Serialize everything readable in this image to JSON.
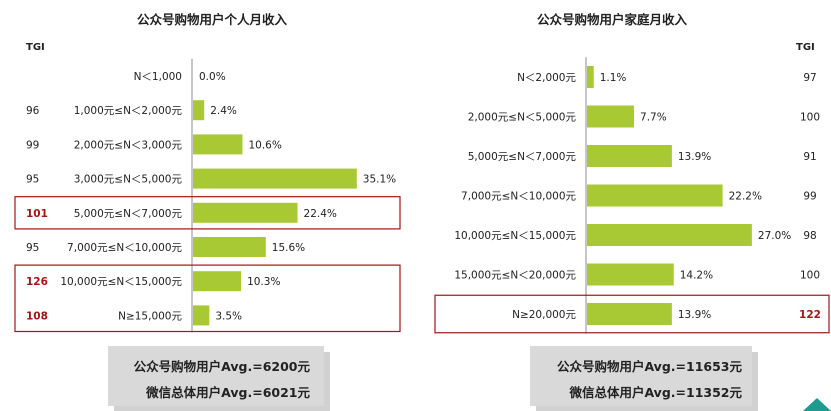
{
  "chart_data": [
    {
      "type": "bar",
      "orientation": "horizontal",
      "title": "公众号购物用户个人月收入",
      "tgi_header": "TGI",
      "categories": [
        "N＜1,000",
        "1,000元≤N＜2,000元",
        "2,000元≤N＜3,000元",
        "3,000元≤N＜5,000元",
        "5,000元≤N＜7,000元",
        "7,000元≤N＜10,000元",
        "10,000元≤N＜15,000元",
        "N≥15,000元"
      ],
      "values": [
        0.0,
        2.4,
        10.6,
        35.1,
        22.4,
        15.6,
        10.3,
        3.5
      ],
      "value_labels": [
        "0.0%",
        "2.4%",
        "10.6%",
        "35.1%",
        "22.4%",
        "15.6%",
        "10.3%",
        "3.5%"
      ],
      "tgi": [
        "",
        "96",
        "99",
        "95",
        "101",
        "95",
        "126",
        "108"
      ],
      "highlighted": [
        4,
        6,
        7
      ],
      "bar_color": "#a9c934",
      "highlight_color": "#a31515",
      "xlim": [
        0,
        36
      ],
      "averages": [
        "公众号购物用户Avg.=6200元",
        "微信总体用户Avg.=6021元"
      ]
    },
    {
      "type": "bar",
      "orientation": "horizontal",
      "title": "公众号购物用户家庭月收入",
      "tgi_header": "TGI",
      "categories": [
        "N＜2,000元",
        "2,000元≤N＜5,000元",
        "5,000元≤N＜7,000元",
        "7,000元≤N＜10,000元",
        "10,000元≤N＜15,000元",
        "15,000元≤N＜20,000元",
        "N≥20,000元"
      ],
      "values": [
        1.1,
        7.7,
        13.9,
        22.2,
        27.0,
        14.2,
        13.9
      ],
      "value_labels": [
        "1.1%",
        "7.7%",
        "13.9%",
        "22.2%",
        "27.0%",
        "14.2%",
        "13.9%"
      ],
      "tgi": [
        "97",
        "100",
        "91",
        "99",
        "98",
        "100",
        "122"
      ],
      "highlighted": [
        6
      ],
      "bar_color": "#a9c934",
      "highlight_color": "#a31515",
      "xlim": [
        0,
        28
      ],
      "averages": [
        "公众号购物用户Avg.=11653元",
        "微信总体用户Avg.=11352元"
      ]
    }
  ]
}
